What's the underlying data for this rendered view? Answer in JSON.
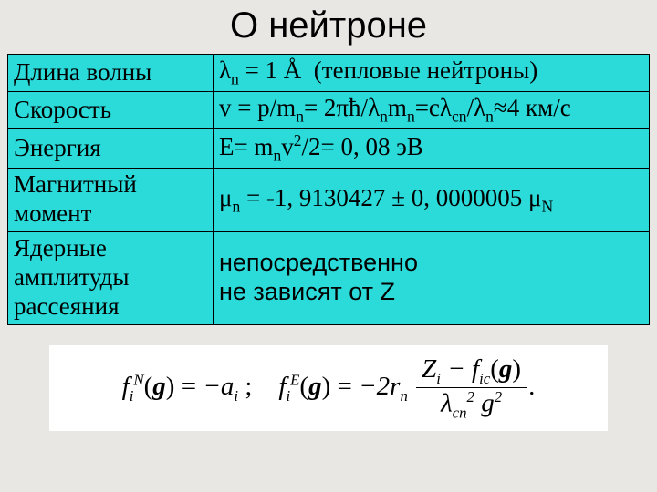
{
  "title": "О нейтроне",
  "table": {
    "rows": [
      {
        "label": "Длина волны",
        "value_html": "λ<span class='sub'>n</span> = 1 Å&nbsp;&nbsp;(тепловые нейтроны)"
      },
      {
        "label": "Скорость",
        "value_html": "v = p/m<span class='sub'>n</span>= 2πħ/λ<span class='sub'>n</span>m<span class='sub'>n</span>=cλ<span class='sub'>cn</span>/λ<span class='sub'>n</span>≈4 км/с"
      },
      {
        "label": "Энергия",
        "value_html": "E= m<span class='sub'>n</span>v<span class='sup'>2</span>/2= 0, 08 эВ"
      },
      {
        "label": "Магнитный момент",
        "value_html": "μ<span class='sub'>n</span> = -1, 9130427 ± 0, 0000005 μ<span class='sub'>N</span>"
      },
      {
        "label": "Ядерные амплитуды рассеяния",
        "value_html": "<span class='sans'>непосредственно<br>не зависят от  Z</span>"
      }
    ]
  },
  "formula": {
    "f1_lhs": "f",
    "f1_sup": "N",
    "f1_sub": "i",
    "f1_arg": "g",
    "f1_rhs_prefix": "−a",
    "f1_rhs_sub": "i",
    "sep": ";",
    "f2_lhs": "f",
    "f2_sup": "E",
    "f2_sub": "i",
    "f2_arg": "g",
    "f2_rhs_prefix": "−2r",
    "f2_rhs_sub": "n",
    "frac_num_html": "Z<span class='sub'>i</span> − f<span class='sub'>ic</span><span class='rm'>(</span><b>g</b><span class='rm'>)</span>",
    "frac_den_html": "λ<span class='sub rm' style='font-style:italic'>cn</span><span class='sup rm'>2</span> g<span class='sup'>2</span>",
    "tail": "."
  },
  "colors": {
    "background": "#e8e7e3",
    "cell_bg": "#2adbda",
    "border": "#000000",
    "formula_bg": "#ffffff"
  }
}
